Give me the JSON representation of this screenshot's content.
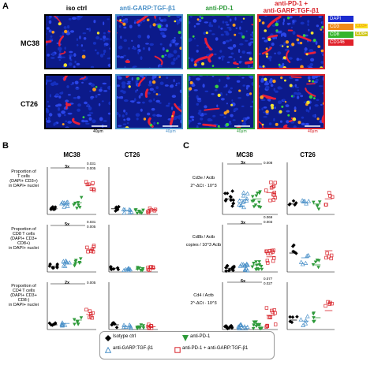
{
  "panel_letters": {
    "a": "A",
    "b": "B",
    "c": "C"
  },
  "microscopy": {
    "columns": [
      {
        "label": "iso ctrl",
        "color": "#000000",
        "border": "#000000"
      },
      {
        "label": "anti-GARP:TGF-β1",
        "color": "#4a90c8",
        "border": "#4a90c8"
      },
      {
        "label": "anti-PD-1",
        "color": "#2e9a3a",
        "border": "#2e9a3a"
      },
      {
        "label": "anti-PD-1 +\nanti-GARP:TGF-β1",
        "color": "#d8232a",
        "border": "#d8232a"
      }
    ],
    "rows": [
      "MC38",
      "CT26"
    ],
    "scale_bar": "40μm",
    "stain_legend": [
      {
        "label": "DAPI",
        "color": "#1b2bd0",
        "text": "#ffffff"
      },
      {
        "label": "CD3",
        "color": "#f08a18",
        "text": "#ffffff"
      },
      {
        "label": "CD8",
        "color": "#35b52c",
        "text": "#ffffff"
      },
      {
        "label": "CD146",
        "color": "#e0202a",
        "text": "#ffffff"
      }
    ],
    "stain_side_labels": [
      "CD3+",
      "CD8+"
    ]
  },
  "panel_b": {
    "col_titles": [
      "MC38",
      "CT26"
    ],
    "ylabels": [
      "Proportion of\nT cells\n(DAPI+ CD3+)\nin DAPI+ nuclei",
      "Proportion of\nCD8 T cells\n(DAPI+ CD3+ CD8+)\nin DAPI+ nuclei",
      "Proportion of\nCD4 T cells\n(DAPI+ CD3+ CD8-)\nin DAPI+ nuclei"
    ],
    "stats": [
      {
        "fold": "3x",
        "p": [
          "0.031",
          "0.005"
        ]
      },
      {
        "fold": "5x",
        "p": [
          "0.031",
          "0.005"
        ]
      },
      {
        "fold": "2x",
        "p": [
          "0.005"
        ]
      }
    ]
  },
  "panel_c": {
    "col_titles": [
      "MC38",
      "CT26"
    ],
    "ylabels": [
      "Cd3e / Actb",
      "Cd8b / Actb",
      "Cd4 / Actb"
    ],
    "ylabel_sub": [
      "2^-ΔCt · 10^3",
      "copies / 10^3 Actb",
      "2^-ΔCt · 10^3"
    ],
    "rows": [
      {
        "ticks": [
          "0",
          "50",
          "100",
          "150",
          "200",
          "250",
          "300"
        ],
        "ticks_ct26": [
          "0",
          "50",
          "100",
          "150",
          "200",
          "250",
          "300"
        ],
        "fold": "3x",
        "p": [
          "0.008"
        ]
      },
      {
        "ticks": [
          "0",
          "20",
          "40",
          "60",
          "80",
          "100"
        ],
        "ticks_ct26": [
          "0",
          "20",
          "40",
          "60",
          "80",
          "100"
        ],
        "fold": "3x",
        "p": [
          "0.069",
          "0.003"
        ]
      },
      {
        "ticks": [
          "0",
          "50",
          "100",
          "150",
          "200"
        ],
        "ticks_ct26": [
          "0",
          "50",
          "100",
          "150",
          "200"
        ],
        "fold": "6x",
        "p": [
          "0.077",
          "0.027"
        ]
      }
    ]
  },
  "legend": {
    "items": [
      {
        "label": "Isotype ctrl",
        "marker": "diamond",
        "color": "#000000"
      },
      {
        "label": "anti-PD-1",
        "marker": "tri-down",
        "color": "#2e9a3a"
      },
      {
        "label": "anti-GARP:TGF-β1",
        "marker": "tri-up-open",
        "color": "#4a90c8"
      },
      {
        "label": "anti-PD-1 + anti-GARP:TGF-β1",
        "marker": "square-open",
        "color": "#d8232a"
      }
    ]
  }
}
